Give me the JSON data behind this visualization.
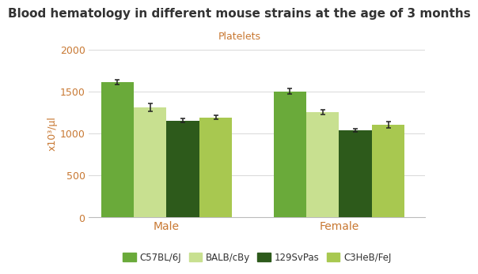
{
  "title": "Blood hematology in different mouse strains at the age of 3 months",
  "subtitle": "Platelets",
  "ylabel": "x10³/µl",
  "groups": [
    "Male",
    "Female"
  ],
  "strains": [
    "C57BL/6J",
    "BALB/cBy",
    "129SvPas",
    "C3HeB/FeJ"
  ],
  "values": {
    "Male": [
      1610,
      1305,
      1150,
      1190
    ],
    "Female": [
      1500,
      1250,
      1035,
      1105
    ]
  },
  "errors": {
    "Male": [
      28,
      48,
      22,
      22
    ],
    "Female": [
      32,
      28,
      18,
      38
    ]
  },
  "colors": [
    "#6aaa3a",
    "#c8e090",
    "#2d5a1b",
    "#a8c850"
  ],
  "ylim": [
    0,
    2000
  ],
  "yticks": [
    0,
    500,
    1000,
    1500,
    2000
  ],
  "title_fontsize": 11,
  "title_color": "#333333",
  "title_fontweight": "bold",
  "subtitle_fontsize": 9,
  "subtitle_color": "#c87832",
  "axis_label_color": "#c87832",
  "tick_label_color": "#c87832",
  "group_label_color": "#c87832",
  "legend_fontsize": 8.5,
  "background_color": "#ffffff",
  "grid_color": "#d8d8d8"
}
